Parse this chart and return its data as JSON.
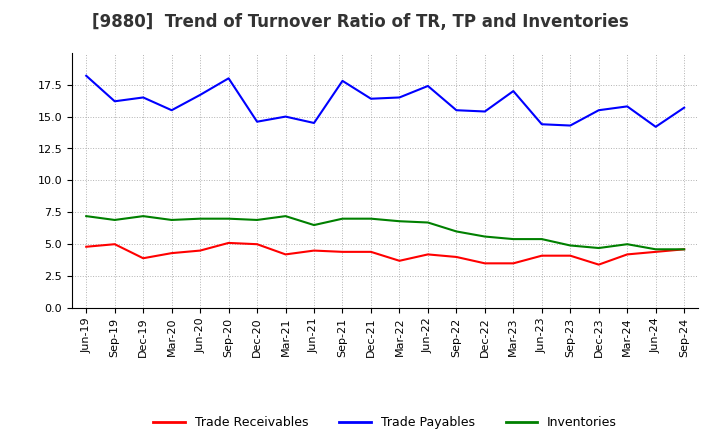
{
  "title": "[9880]  Trend of Turnover Ratio of TR, TP and Inventories",
  "x_labels": [
    "Jun-19",
    "Sep-19",
    "Dec-19",
    "Mar-20",
    "Jun-20",
    "Sep-20",
    "Dec-20",
    "Mar-21",
    "Jun-21",
    "Sep-21",
    "Dec-21",
    "Mar-22",
    "Jun-22",
    "Sep-22",
    "Dec-22",
    "Mar-23",
    "Jun-23",
    "Sep-23",
    "Dec-23",
    "Mar-24",
    "Jun-24",
    "Sep-24"
  ],
  "trade_receivables": [
    4.8,
    5.0,
    3.9,
    4.3,
    4.5,
    5.1,
    5.0,
    4.2,
    4.5,
    4.4,
    4.4,
    3.7,
    4.2,
    4.0,
    3.5,
    3.5,
    4.1,
    4.1,
    3.4,
    4.2,
    4.4,
    4.6
  ],
  "trade_payables": [
    18.2,
    16.2,
    16.5,
    15.5,
    16.7,
    18.0,
    14.6,
    15.0,
    14.5,
    17.8,
    16.4,
    16.5,
    17.4,
    15.5,
    15.4,
    17.0,
    14.4,
    14.3,
    15.5,
    15.8,
    14.2,
    15.7
  ],
  "inventories": [
    7.2,
    6.9,
    7.2,
    6.9,
    7.0,
    7.0,
    6.9,
    7.2,
    6.5,
    7.0,
    7.0,
    6.8,
    6.7,
    6.0,
    5.6,
    5.4,
    5.4,
    4.9,
    4.7,
    5.0,
    4.6,
    4.6
  ],
  "ylim": [
    0,
    20
  ],
  "yticks": [
    0.0,
    2.5,
    5.0,
    7.5,
    10.0,
    12.5,
    15.0,
    17.5
  ],
  "color_tr": "#ff0000",
  "color_tp": "#0000ff",
  "color_inv": "#008000",
  "legend_labels": [
    "Trade Receivables",
    "Trade Payables",
    "Inventories"
  ],
  "bg_color": "#ffffff",
  "grid_color": "#aaaaaa",
  "title_fontsize": 12,
  "tick_fontsize": 8,
  "legend_fontsize": 9
}
